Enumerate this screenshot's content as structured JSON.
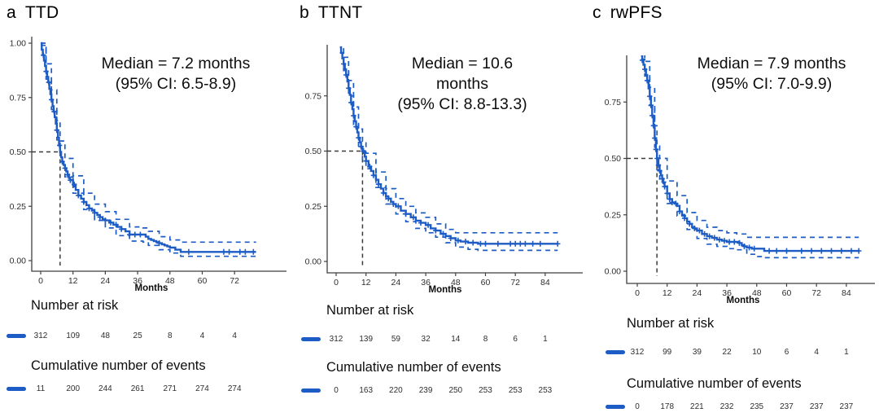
{
  "colors": {
    "curve": "#1d5cc4",
    "ci_band_line": "#1d5cc4",
    "median_dash": "#3a3a3a",
    "axis": "#3f3f3f",
    "text": "#111111"
  },
  "chart_data": [
    {
      "type": "line",
      "subtype": "kaplan_meier_step",
      "panel_letter": "a",
      "title": "TTD",
      "annotation_lines": [
        "Median = 7.2 months",
        "(95% CI: 6.5-8.9)"
      ],
      "median_months": 7.2,
      "xlabel": "Months",
      "x_ticks": [
        0,
        12,
        24,
        36,
        48,
        60,
        72
      ],
      "x_range": [
        0,
        91
      ],
      "y_ticks": [
        1.0,
        0.75,
        0.5,
        0.25,
        0.0
      ],
      "y_tick_labels": [
        "1.00",
        "0.75",
        "0.50",
        "0.25",
        "0.00"
      ],
      "grid": false,
      "legend": "none",
      "estimate": {
        "t": [
          0,
          0.4,
          0.8,
          1.2,
          1.6,
          2,
          2.4,
          2.8,
          3.2,
          3.6,
          4,
          4.4,
          4.8,
          5.2,
          5.6,
          6,
          6.4,
          6.8,
          7.2,
          7.6,
          8,
          8.5,
          9,
          9.5,
          10,
          10.5,
          11,
          12,
          13,
          14,
          15,
          16,
          17,
          18,
          19,
          20,
          21,
          22,
          23,
          24,
          25.5,
          27,
          28.5,
          30,
          31.5,
          33,
          38,
          39,
          40,
          41,
          42,
          43,
          44,
          45,
          46,
          47,
          48,
          50,
          52,
          80
        ],
        "s": [
          1.0,
          0.97,
          0.945,
          0.92,
          0.895,
          0.87,
          0.845,
          0.82,
          0.79,
          0.765,
          0.74,
          0.71,
          0.685,
          0.66,
          0.63,
          0.6,
          0.565,
          0.53,
          0.5,
          0.475,
          0.455,
          0.44,
          0.425,
          0.41,
          0.395,
          0.38,
          0.37,
          0.35,
          0.325,
          0.3,
          0.285,
          0.27,
          0.255,
          0.24,
          0.23,
          0.22,
          0.21,
          0.2,
          0.19,
          0.185,
          0.175,
          0.165,
          0.155,
          0.145,
          0.135,
          0.12,
          0.12,
          0.11,
          0.1,
          0.095,
          0.09,
          0.085,
          0.08,
          0.075,
          0.07,
          0.065,
          0.06,
          0.05,
          0.04
        ]
      },
      "ci_upper": {
        "t": [
          0,
          2,
          4,
          6,
          7.2,
          9,
          12,
          16,
          20,
          24,
          28,
          33,
          38,
          40,
          44,
          48,
          52,
          80
        ],
        "s": [
          1.0,
          0.905,
          0.785,
          0.645,
          0.55,
          0.47,
          0.39,
          0.31,
          0.26,
          0.225,
          0.19,
          0.155,
          0.15,
          0.135,
          0.11,
          0.095,
          0.085,
          0.085
        ]
      },
      "ci_lower": {
        "t": [
          0,
          2,
          4,
          6,
          7.2,
          9,
          12,
          16,
          20,
          24,
          28,
          33,
          38,
          40,
          44,
          48,
          52,
          80
        ],
        "s": [
          0.99,
          0.835,
          0.695,
          0.555,
          0.455,
          0.385,
          0.31,
          0.235,
          0.185,
          0.15,
          0.115,
          0.09,
          0.085,
          0.07,
          0.05,
          0.035,
          0.02,
          0.02
        ]
      },
      "censor_times": [
        1,
        2,
        3,
        4,
        5,
        6,
        7,
        8,
        9,
        10,
        11,
        12.5,
        14,
        16,
        18,
        20,
        22,
        24,
        26,
        28,
        30,
        33,
        35,
        37,
        44,
        55,
        68,
        70,
        74,
        76,
        79
      ],
      "risk_table": {
        "header": "Number at risk",
        "times": [
          0,
          12,
          24,
          36,
          48,
          60,
          72
        ],
        "counts": [
          312,
          109,
          48,
          25,
          8,
          4,
          4
        ]
      },
      "events_table": {
        "header": "Cumulative number of events",
        "times": [
          0,
          12,
          24,
          36,
          48,
          60,
          72
        ],
        "counts": [
          11,
          200,
          244,
          261,
          271,
          274,
          274
        ]
      }
    },
    {
      "type": "line",
      "subtype": "kaplan_meier_step",
      "panel_letter": "b",
      "title": "TTNT",
      "annotation_lines": [
        "Median = 10.6",
        "months",
        "(95% CI: 8.8-13.3)"
      ],
      "median_months": 10.6,
      "xlabel": "Months",
      "x_ticks": [
        0,
        12,
        24,
        36,
        48,
        60,
        72,
        84
      ],
      "x_range": [
        0,
        93
      ],
      "y_ticks": [
        0.75,
        0.5,
        0.25,
        0.0
      ],
      "y_tick_labels": [
        "0.75",
        "0.50",
        "0.25",
        "0.00"
      ],
      "grid": false,
      "legend": "none",
      "estimate": {
        "t": [
          1.5,
          2,
          2.5,
          3,
          3.5,
          4,
          4.5,
          5,
          5.5,
          6,
          6.5,
          7,
          7.5,
          8,
          8.5,
          9,
          9.5,
          10,
          10.6,
          11.5,
          12,
          13,
          14,
          15,
          16,
          17,
          18,
          19,
          20,
          21,
          22,
          23,
          24,
          26,
          28,
          30,
          32,
          34,
          36,
          38,
          40,
          42,
          44,
          46,
          48,
          50,
          53,
          57,
          89
        ],
        "s": [
          0.97,
          0.945,
          0.92,
          0.895,
          0.87,
          0.845,
          0.815,
          0.785,
          0.755,
          0.72,
          0.69,
          0.66,
          0.635,
          0.61,
          0.585,
          0.56,
          0.54,
          0.52,
          0.5,
          0.475,
          0.455,
          0.43,
          0.41,
          0.39,
          0.37,
          0.35,
          0.33,
          0.31,
          0.295,
          0.285,
          0.27,
          0.26,
          0.25,
          0.23,
          0.215,
          0.2,
          0.185,
          0.175,
          0.165,
          0.15,
          0.14,
          0.125,
          0.115,
          0.105,
          0.095,
          0.09,
          0.085,
          0.08,
          0.08
        ]
      },
      "ci_upper": {
        "t": [
          1.5,
          3,
          5,
          7,
          9,
          10.6,
          12,
          16,
          20,
          24,
          28,
          32,
          36,
          40,
          44,
          48,
          53,
          57,
          89
        ],
        "s": [
          0.99,
          0.925,
          0.82,
          0.7,
          0.6,
          0.545,
          0.49,
          0.405,
          0.33,
          0.285,
          0.25,
          0.22,
          0.2,
          0.17,
          0.145,
          0.13,
          0.13,
          0.13,
          0.13
        ]
      },
      "ci_lower": {
        "t": [
          1.5,
          3,
          5,
          7,
          9,
          10.6,
          12,
          16,
          20,
          24,
          28,
          32,
          36,
          40,
          44,
          48,
          53,
          57,
          89
        ],
        "s": [
          0.945,
          0.865,
          0.75,
          0.62,
          0.52,
          0.455,
          0.42,
          0.335,
          0.26,
          0.215,
          0.18,
          0.15,
          0.13,
          0.11,
          0.085,
          0.065,
          0.055,
          0.05,
          0.05
        ]
      },
      "censor_times": [
        3,
        4,
        5,
        6,
        7,
        8,
        9,
        10,
        11,
        12,
        13.5,
        15,
        17,
        19,
        21,
        23,
        25,
        28,
        31,
        34,
        37,
        40,
        43,
        46,
        49,
        52,
        55,
        58,
        60,
        65,
        70,
        72,
        74,
        76,
        79,
        82,
        89
      ],
      "risk_table": {
        "header": "Number at risk",
        "times": [
          0,
          12,
          24,
          36,
          48,
          60,
          72,
          84
        ],
        "counts": [
          312,
          139,
          59,
          32,
          14,
          8,
          6,
          1
        ]
      },
      "events_table": {
        "header": "Cumulative number of events",
        "times": [
          0,
          12,
          24,
          36,
          48,
          60,
          72,
          84
        ],
        "counts": [
          0,
          163,
          220,
          239,
          250,
          253,
          253,
          253
        ]
      }
    },
    {
      "type": "line",
      "subtype": "kaplan_meier_step",
      "panel_letter": "c",
      "title": "rwPFS",
      "annotation_lines": [
        "Median = 7.9 months",
        "(95% CI: 7.0-9.9)"
      ],
      "median_months": 7.9,
      "xlabel": "Months",
      "x_ticks": [
        0,
        12,
        24,
        36,
        48,
        60,
        72,
        84
      ],
      "x_range": [
        0,
        93
      ],
      "y_ticks": [
        0.75,
        0.5,
        0.25,
        0.0
      ],
      "y_tick_labels": [
        "0.75",
        "0.50",
        "0.25",
        "0.00"
      ],
      "grid": false,
      "legend": "none",
      "estimate": {
        "t": [
          1.5,
          2,
          2.5,
          3,
          3.5,
          4,
          4.5,
          5,
          5.5,
          6,
          6.5,
          7,
          7.5,
          7.9,
          8.5,
          9,
          9.5,
          10,
          10.5,
          11,
          12,
          13,
          14,
          15,
          16,
          17,
          18,
          19,
          20,
          21,
          22,
          23,
          24,
          26,
          28,
          30,
          32,
          34,
          36,
          40,
          41,
          42,
          43,
          44,
          46,
          51,
          89
        ],
        "s": [
          0.955,
          0.935,
          0.915,
          0.895,
          0.87,
          0.845,
          0.81,
          0.775,
          0.735,
          0.69,
          0.645,
          0.59,
          0.54,
          0.5,
          0.47,
          0.445,
          0.425,
          0.41,
          0.39,
          0.375,
          0.345,
          0.32,
          0.305,
          0.3,
          0.29,
          0.265,
          0.25,
          0.235,
          0.22,
          0.21,
          0.195,
          0.19,
          0.18,
          0.165,
          0.155,
          0.148,
          0.14,
          0.135,
          0.13,
          0.13,
          0.125,
          0.115,
          0.11,
          0.105,
          0.1,
          0.09,
          0.09
        ]
      },
      "ci_upper": {
        "t": [
          1.5,
          3,
          5,
          7,
          7.9,
          9,
          12,
          16,
          20,
          24,
          28,
          32,
          36,
          40,
          44,
          48,
          51,
          89
        ],
        "s": [
          0.99,
          0.93,
          0.815,
          0.645,
          0.555,
          0.5,
          0.4,
          0.335,
          0.26,
          0.225,
          0.195,
          0.18,
          0.17,
          0.165,
          0.15,
          0.15,
          0.15,
          0.15
        ]
      },
      "ci_lower": {
        "t": [
          1.5,
          3,
          5,
          7,
          7.9,
          9,
          12,
          16,
          20,
          24,
          28,
          32,
          36,
          40,
          44,
          48,
          51,
          89
        ],
        "s": [
          0.94,
          0.865,
          0.735,
          0.55,
          0.45,
          0.395,
          0.3,
          0.245,
          0.185,
          0.145,
          0.12,
          0.11,
          0.1,
          0.095,
          0.075,
          0.065,
          0.06,
          0.06
        ]
      },
      "censor_times": [
        2,
        3,
        4,
        5,
        5.5,
        6,
        6.5,
        7,
        7.5,
        8,
        8.5,
        9,
        10,
        11,
        12,
        13,
        14,
        15.5,
        17,
        19,
        21,
        23,
        25,
        27,
        29,
        31,
        33,
        35,
        37,
        39,
        41,
        43,
        45,
        47,
        53,
        56,
        60,
        66,
        70,
        74,
        78,
        82,
        86,
        89
      ],
      "risk_table": {
        "header": "Number at risk",
        "times": [
          0,
          12,
          24,
          36,
          48,
          60,
          72,
          84
        ],
        "counts": [
          312,
          99,
          39,
          22,
          10,
          6,
          4,
          1
        ]
      },
      "events_table": {
        "header": "Cumulative number of events",
        "times": [
          0,
          12,
          24,
          36,
          48,
          60,
          72,
          84
        ],
        "counts": [
          0,
          178,
          221,
          232,
          235,
          237,
          237,
          237
        ]
      }
    }
  ]
}
